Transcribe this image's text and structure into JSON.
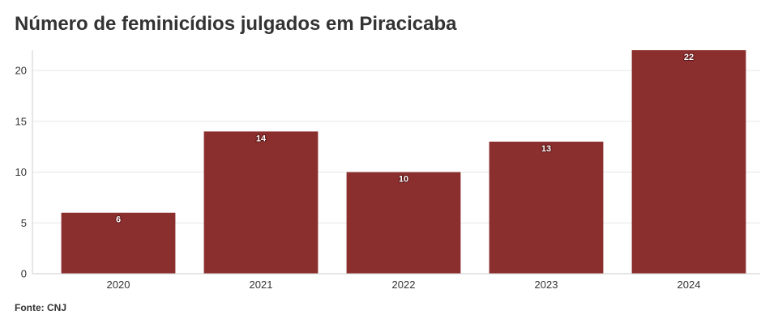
{
  "title": "Número de feminicídios julgados em Piracicaba",
  "source": "Fonte: CNJ",
  "colors": {
    "bar": "#8b2e2e",
    "grid": "#e6e6e6",
    "axis": "#cccccc",
    "text": "#333333"
  },
  "chart_data": {
    "type": "bar",
    "title": "Número de feminicídios julgados em Piracicaba",
    "categories": [
      "2020",
      "2021",
      "2022",
      "2023",
      "2024"
    ],
    "values": [
      6,
      14,
      10,
      13,
      22
    ],
    "data_labels": [
      "6",
      "14",
      "10",
      "13",
      "22"
    ],
    "xlabel": "",
    "ylabel": "",
    "ylim": [
      0,
      22
    ],
    "yticks": [
      0,
      5,
      10,
      15,
      20
    ],
    "grid": true,
    "legend": "none"
  }
}
